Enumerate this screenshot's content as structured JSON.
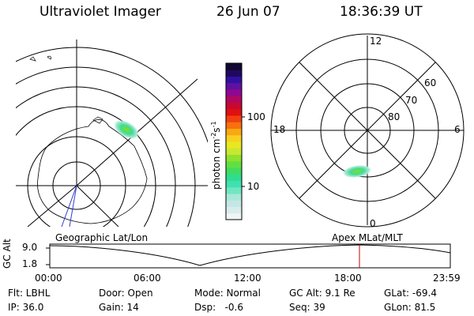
{
  "header": {
    "title": "Ultraviolet Imager",
    "date": "26 Jun 07",
    "time": "18:36:39 UT"
  },
  "colorbar": {
    "unit_label": "photon cm",
    "unit_exp1": "-2",
    "unit_mid": "s",
    "unit_exp2": "-1",
    "ticks": [
      "100",
      "10"
    ],
    "colors": [
      "#f0f4f4",
      "#d8ecec",
      "#c4e6e6",
      "#a8e8d8",
      "#70e6c0",
      "#40e0b0",
      "#30dc90",
      "#40dc60",
      "#60e040",
      "#90e030",
      "#c8e830",
      "#e8e820",
      "#f8d020",
      "#f8a810",
      "#f87010",
      "#f04010",
      "#e01010",
      "#c80830",
      "#b00860",
      "#900890",
      "#6010a0",
      "#3010a0",
      "#200860",
      "#100830"
    ]
  },
  "polar_plot": {
    "labels": {
      "top": "12",
      "left": "18",
      "right": "6",
      "bottom": "0",
      "ring60": "60",
      "ring70": "70",
      "ring80": "80"
    }
  },
  "timeline": {
    "left_caption": "Geographic Lat/Lon",
    "right_caption": "Apex MLat/MLT",
    "axis_label": "GC Alt",
    "y_ticks": [
      "9.0",
      "1.8"
    ],
    "x_ticks": [
      "00:00",
      "06:00",
      "12:00",
      "18:00",
      "23:59"
    ],
    "current_marker_color": "#c00000"
  },
  "info": {
    "row1": {
      "flt": "Flt: LBHL",
      "door": "Door: Open",
      "mode": "Mode: Normal",
      "gcalt": "GC Alt: 9.1 Re",
      "glat": "GLat: -69.4"
    },
    "row2": {
      "ip": "IP: 36.0",
      "gain": "Gain: 14",
      "dsp": "Dsp:   -0.6",
      "seq": "Seq: 39",
      "glon": "GLon: 81.5"
    }
  }
}
